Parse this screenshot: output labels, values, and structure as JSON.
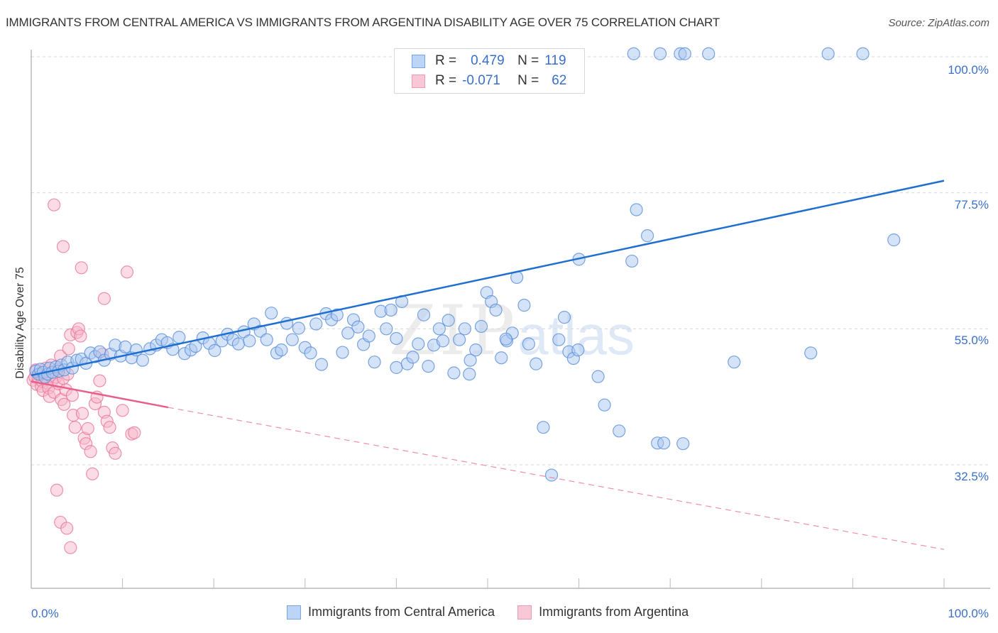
{
  "header": {
    "title": "IMMIGRANTS FROM CENTRAL AMERICA VS IMMIGRANTS FROM ARGENTINA DISABILITY AGE OVER 75 CORRELATION CHART",
    "source": "Source: ZipAtlas.com"
  },
  "watermark": {
    "zip": "ZIP",
    "atlas": "atlas"
  },
  "legend": {
    "rows": [
      {
        "r_label": "R =",
        "r_value": "0.479",
        "n_label": "N =",
        "n_value": "119",
        "color": "#a9c8f0"
      },
      {
        "r_label": "R =",
        "r_value": "-0.071",
        "n_label": "N =",
        "n_value": "62",
        "color": "#f7b8cb"
      }
    ]
  },
  "colors": {
    "blue_fill": "#a9c8f0",
    "blue_stroke": "#5b8fd9",
    "blue_line": "#1f6fd1",
    "pink_fill": "#f7b8cb",
    "pink_stroke": "#e8789a",
    "pink_line": "#e8608a",
    "tick_text": "#3a6fc9",
    "grid": "#d9d9d9"
  },
  "chart_data": {
    "type": "scatter",
    "title": "IMMIGRANTS FROM CENTRAL AMERICA VS IMMIGRANTS FROM ARGENTINA DISABILITY AGE OVER 75 CORRELATION CHART",
    "xlabel": "",
    "ylabel": "Disability Age Over 75",
    "xlim": [
      0,
      100
    ],
    "ylim": [
      12,
      102
    ],
    "x_tick_labels": [
      "0.0%",
      "100.0%"
    ],
    "y_ticks": [
      32.5,
      55.0,
      77.5,
      100.0
    ],
    "y_tick_labels": [
      "32.5%",
      "55.0%",
      "77.5%",
      "100.0%"
    ],
    "grid": true,
    "legend_position": "top-center",
    "series": [
      {
        "name": "Immigrants from Central America",
        "r": 0.479,
        "n": 119,
        "trend": {
          "x": [
            0,
            100
          ],
          "y": [
            47.3,
            79.5
          ],
          "style": "solid"
        },
        "points": [
          [
            0.5,
            48.0
          ],
          [
            0.8,
            47.5
          ],
          [
            1.0,
            48.3
          ],
          [
            1.3,
            47.8
          ],
          [
            1.5,
            47.0
          ],
          [
            1.8,
            47.5
          ],
          [
            2.0,
            48.5
          ],
          [
            2.3,
            47.8
          ],
          [
            2.7,
            48.7
          ],
          [
            3.0,
            48.0
          ],
          [
            3.3,
            49.0
          ],
          [
            3.6,
            48.2
          ],
          [
            4.0,
            49.5
          ],
          [
            4.5,
            48.5
          ],
          [
            5.0,
            49.8
          ],
          [
            5.5,
            50.0
          ],
          [
            6.0,
            49.3
          ],
          [
            6.5,
            51.0
          ],
          [
            7.0,
            50.4
          ],
          [
            7.5,
            51.2
          ],
          [
            8.0,
            49.8
          ],
          [
            8.7,
            50.8
          ],
          [
            9.2,
            52.3
          ],
          [
            9.8,
            50.5
          ],
          [
            10.3,
            52.0
          ],
          [
            11.0,
            50.2
          ],
          [
            11.5,
            51.5
          ],
          [
            12.2,
            49.8
          ],
          [
            13.0,
            51.7
          ],
          [
            13.7,
            52.3
          ],
          [
            14.3,
            53.2
          ],
          [
            14.9,
            52.7
          ],
          [
            15.5,
            51.6
          ],
          [
            16.2,
            53.6
          ],
          [
            16.8,
            50.9
          ],
          [
            17.5,
            51.5
          ],
          [
            18.0,
            52.1
          ],
          [
            18.8,
            53.5
          ],
          [
            19.5,
            52.6
          ],
          [
            20.1,
            51.4
          ],
          [
            20.9,
            53.0
          ],
          [
            21.5,
            54.1
          ],
          [
            22.1,
            53.2
          ],
          [
            22.7,
            52.5
          ],
          [
            23.3,
            54.5
          ],
          [
            23.9,
            53.0
          ],
          [
            24.4,
            55.8
          ],
          [
            25.1,
            54.6
          ],
          [
            25.8,
            53.2
          ],
          [
            26.3,
            57.6
          ],
          [
            26.9,
            51.0
          ],
          [
            27.4,
            51.5
          ],
          [
            28.0,
            55.9
          ],
          [
            28.6,
            53.2
          ],
          [
            29.3,
            55.1
          ],
          [
            30.0,
            51.9
          ],
          [
            30.6,
            51.0
          ],
          [
            31.2,
            55.8
          ],
          [
            31.8,
            49.1
          ],
          [
            32.3,
            57.5
          ],
          [
            32.9,
            56.5
          ],
          [
            33.5,
            57.3
          ],
          [
            34.1,
            51.1
          ],
          [
            34.7,
            54.3
          ],
          [
            35.3,
            56.5
          ],
          [
            35.8,
            55.3
          ],
          [
            36.4,
            52.4
          ],
          [
            37.0,
            53.8
          ],
          [
            37.6,
            49.5
          ],
          [
            38.3,
            57.9
          ],
          [
            38.9,
            55.0
          ],
          [
            39.4,
            58.1
          ],
          [
            40.0,
            48.6
          ],
          [
            40.6,
            59.5
          ],
          [
            41.2,
            49.2
          ],
          [
            41.8,
            50.3
          ],
          [
            42.4,
            52.5
          ],
          [
            43.0,
            57.3
          ],
          [
            43.5,
            48.8
          ],
          [
            44.1,
            52.3
          ],
          [
            44.7,
            55.0
          ],
          [
            45.1,
            53.0
          ],
          [
            45.7,
            56.4
          ],
          [
            46.3,
            47.7
          ],
          [
            46.9,
            53.2
          ],
          [
            47.5,
            55.0
          ],
          [
            48.1,
            49.8
          ],
          [
            48.7,
            51.5
          ],
          [
            49.3,
            55.4
          ],
          [
            49.9,
            61.0
          ],
          [
            50.4,
            59.5
          ],
          [
            50.9,
            58.1
          ],
          [
            51.5,
            50.2
          ],
          [
            52.1,
            53.0
          ],
          [
            52.7,
            54.3
          ],
          [
            53.2,
            63.5
          ],
          [
            54.0,
            58.9
          ],
          [
            54.5,
            52.5
          ],
          [
            55.3,
            49.2
          ],
          [
            56.1,
            38.7
          ],
          [
            57.0,
            30.8
          ],
          [
            57.8,
            53.2
          ],
          [
            58.4,
            56.9
          ],
          [
            58.9,
            51.2
          ],
          [
            59.4,
            50.1
          ],
          [
            59.9,
            51.5
          ],
          [
            62.1,
            47.1
          ],
          [
            62.8,
            42.4
          ],
          [
            64.4,
            38.1
          ],
          [
            65.8,
            66.2
          ],
          [
            66.3,
            74.7
          ],
          [
            67.5,
            70.4
          ],
          [
            68.6,
            36.1
          ],
          [
            69.3,
            36.1
          ],
          [
            71.4,
            36.0
          ],
          [
            77.0,
            49.5
          ],
          [
            85.4,
            51.0
          ],
          [
            94.5,
            69.7
          ],
          [
            66.0,
            100.5
          ],
          [
            68.9,
            100.5
          ],
          [
            71.1,
            100.5
          ],
          [
            71.6,
            100.5
          ],
          [
            74.2,
            100.5
          ],
          [
            87.3,
            100.5
          ],
          [
            91.1,
            100.5
          ],
          [
            60.0,
            66.5
          ],
          [
            52.0,
            53.3
          ],
          [
            48.0,
            47.5
          ],
          [
            40.0,
            53.4
          ]
        ]
      },
      {
        "name": "Immigrants from Argentina",
        "r": -0.071,
        "n": 62,
        "trend": {
          "x": [
            0,
            15
          ],
          "y": [
            46.3,
            42.0
          ],
          "dashed_extension": {
            "x": [
              15,
              100
            ],
            "y": [
              42.0,
              18.5
            ]
          },
          "style": "solid-then-dashed"
        },
        "points": [
          [
            0.2,
            46.5
          ],
          [
            0.4,
            47.0
          ],
          [
            0.5,
            48.2
          ],
          [
            0.6,
            45.8
          ],
          [
            0.8,
            46.9
          ],
          [
            1.0,
            47.5
          ],
          [
            1.1,
            45.5
          ],
          [
            1.2,
            46.3
          ],
          [
            1.3,
            44.8
          ],
          [
            1.5,
            47.8
          ],
          [
            1.6,
            48.5
          ],
          [
            1.8,
            46.0
          ],
          [
            1.9,
            45.2
          ],
          [
            2.0,
            43.8
          ],
          [
            2.1,
            47.2
          ],
          [
            2.2,
            49.0
          ],
          [
            2.4,
            46.6
          ],
          [
            2.5,
            44.5
          ],
          [
            2.7,
            47.0
          ],
          [
            2.9,
            48.3
          ],
          [
            3.0,
            45.9
          ],
          [
            3.2,
            50.5
          ],
          [
            3.3,
            43.3
          ],
          [
            3.5,
            46.8
          ],
          [
            3.6,
            42.5
          ],
          [
            3.8,
            44.9
          ],
          [
            4.0,
            47.5
          ],
          [
            4.1,
            51.7
          ],
          [
            4.3,
            54.0
          ],
          [
            4.5,
            44.0
          ],
          [
            4.6,
            40.7
          ],
          [
            4.8,
            38.7
          ],
          [
            5.0,
            54.4
          ],
          [
            5.2,
            55.0
          ],
          [
            5.4,
            53.8
          ],
          [
            5.6,
            41.0
          ],
          [
            5.8,
            36.9
          ],
          [
            6.0,
            36.0
          ],
          [
            6.2,
            38.5
          ],
          [
            6.5,
            34.7
          ],
          [
            6.7,
            31.0
          ],
          [
            7.0,
            42.6
          ],
          [
            7.2,
            43.7
          ],
          [
            7.5,
            46.4
          ],
          [
            7.8,
            50.8
          ],
          [
            8.0,
            41.2
          ],
          [
            8.3,
            39.7
          ],
          [
            8.6,
            38.7
          ],
          [
            8.9,
            35.3
          ],
          [
            9.2,
            34.4
          ],
          [
            2.5,
            75.5
          ],
          [
            3.5,
            68.6
          ],
          [
            5.5,
            65.1
          ],
          [
            8.0,
            60.0
          ],
          [
            10.0,
            41.5
          ],
          [
            10.5,
            64.4
          ],
          [
            11.0,
            37.6
          ],
          [
            11.3,
            37.8
          ],
          [
            2.8,
            28.3
          ],
          [
            3.2,
            23.0
          ],
          [
            3.9,
            22.0
          ],
          [
            4.3,
            18.8
          ]
        ]
      }
    ]
  },
  "bottom_legend": {
    "items": [
      {
        "label": "Immigrants from Central America"
      },
      {
        "label": "Immigrants from Argentina"
      }
    ]
  }
}
